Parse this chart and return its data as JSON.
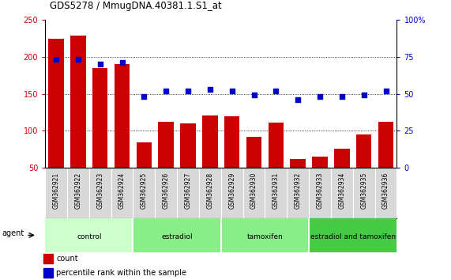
{
  "title": "GDS5278 / MmugDNA.40381.1.S1_at",
  "categories": [
    "GSM362921",
    "GSM362922",
    "GSM362923",
    "GSM362924",
    "GSM362925",
    "GSM362926",
    "GSM362927",
    "GSM362928",
    "GSM362929",
    "GSM362930",
    "GSM362931",
    "GSM362932",
    "GSM362933",
    "GSM362934",
    "GSM362935",
    "GSM362936"
  ],
  "bar_values": [
    224,
    228,
    185,
    190,
    85,
    112,
    110,
    121,
    120,
    92,
    111,
    62,
    65,
    76,
    95,
    112
  ],
  "scatter_pct": [
    73,
    73,
    70,
    71,
    48,
    52,
    52,
    53,
    52,
    49,
    52,
    46,
    48,
    48,
    49,
    52
  ],
  "bar_color": "#cc0000",
  "scatter_color": "#0000cc",
  "ylim_left": [
    50,
    250
  ],
  "ylim_right": [
    0,
    100
  ],
  "yticks_left": [
    50,
    100,
    150,
    200,
    250
  ],
  "yticks_right": [
    0,
    25,
    50,
    75,
    100
  ],
  "yticklabels_right": [
    "0",
    "25",
    "50",
    "75",
    "100%"
  ],
  "groups": [
    {
      "label": "control",
      "start": 0,
      "end": 4,
      "color": "#ccffcc"
    },
    {
      "label": "estradiol",
      "start": 4,
      "end": 8,
      "color": "#88ee88"
    },
    {
      "label": "tamoxifen",
      "start": 8,
      "end": 12,
      "color": "#88ee88"
    },
    {
      "label": "estradiol and tamoxifen",
      "start": 12,
      "end": 16,
      "color": "#44cc44"
    }
  ],
  "agent_label": "agent",
  "legend_count_color": "#cc0000",
  "legend_scatter_color": "#0000cc"
}
